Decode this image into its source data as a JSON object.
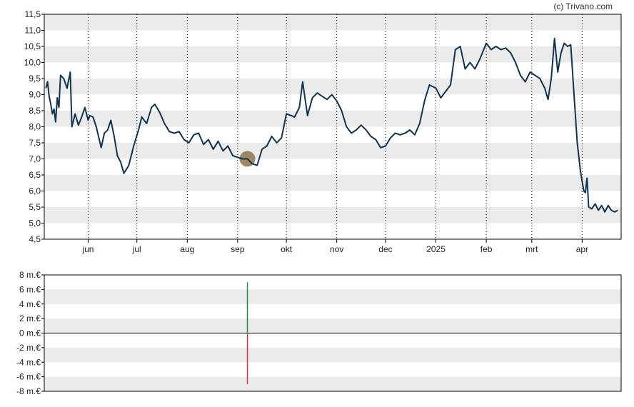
{
  "credit": "(c) Trivano.com",
  "colors": {
    "line": "#0f3550",
    "band": "#ebebeb",
    "grid": "#000000",
    "marker": "#8c7448",
    "bar_positive": "#1e8c3c",
    "bar_negative": "#e0303a"
  },
  "chart_data": [
    {
      "type": "line",
      "title": "",
      "xlabel": "",
      "ylabel": "",
      "ylim": [
        4.5,
        11.5
      ],
      "yticks": [
        "4,5",
        "5,0",
        "5,5",
        "6,0",
        "6,5",
        "7,0",
        "7,5",
        "8,0",
        "8,5",
        "9,0",
        "9,5",
        "10,0",
        "10,5",
        "11,0",
        "11,5"
      ],
      "xticks": [
        "jun",
        "jul",
        "aug",
        "sep",
        "okt",
        "nov",
        "dec",
        "2025",
        "feb",
        "mrt",
        "apr"
      ],
      "grid": "vertical dotted at month starts, alternating horizontal bands",
      "highlight_point": {
        "x": "2024-09-07",
        "y": 7.0
      },
      "series": [
        {
          "points": [
            [
              "2024-05-06",
              9.2
            ],
            [
              "2024-05-07",
              9.4
            ],
            [
              "2024-05-08",
              8.95
            ],
            [
              "2024-05-09",
              8.7
            ],
            [
              "2024-05-10",
              8.4
            ],
            [
              "2024-05-11",
              8.55
            ],
            [
              "2024-05-12",
              8.15
            ],
            [
              "2024-05-13",
              8.9
            ],
            [
              "2024-05-14",
              8.6
            ],
            [
              "2024-05-15",
              9.6
            ],
            [
              "2024-05-17",
              9.5
            ],
            [
              "2024-05-19",
              9.2
            ],
            [
              "2024-05-21",
              9.7
            ],
            [
              "2024-05-22",
              8.0
            ],
            [
              "2024-05-24",
              8.4
            ],
            [
              "2024-05-26",
              8.05
            ],
            [
              "2024-05-28",
              8.3
            ],
            [
              "2024-05-30",
              8.6
            ],
            [
              "2024-06-01",
              8.2
            ],
            [
              "2024-06-02",
              8.35
            ],
            [
              "2024-06-04",
              8.3
            ],
            [
              "2024-06-06",
              8.0
            ],
            [
              "2024-06-09",
              7.35
            ],
            [
              "2024-06-11",
              7.8
            ],
            [
              "2024-06-13",
              7.9
            ],
            [
              "2024-06-15",
              8.2
            ],
            [
              "2024-06-17",
              7.7
            ],
            [
              "2024-06-19",
              7.1
            ],
            [
              "2024-06-21",
              6.9
            ],
            [
              "2024-06-23",
              6.55
            ],
            [
              "2024-06-26",
              6.8
            ],
            [
              "2024-06-29",
              7.4
            ],
            [
              "2024-07-02",
              7.9
            ],
            [
              "2024-07-04",
              8.3
            ],
            [
              "2024-07-07",
              8.1
            ],
            [
              "2024-07-10",
              8.6
            ],
            [
              "2024-07-12",
              8.7
            ],
            [
              "2024-07-15",
              8.45
            ],
            [
              "2024-07-18",
              8.1
            ],
            [
              "2024-07-21",
              7.85
            ],
            [
              "2024-07-24",
              7.8
            ],
            [
              "2024-07-27",
              7.85
            ],
            [
              "2024-07-30",
              7.6
            ],
            [
              "2024-08-02",
              7.5
            ],
            [
              "2024-08-05",
              7.75
            ],
            [
              "2024-08-08",
              7.8
            ],
            [
              "2024-08-11",
              7.45
            ],
            [
              "2024-08-14",
              7.6
            ],
            [
              "2024-08-17",
              7.3
            ],
            [
              "2024-08-20",
              7.55
            ],
            [
              "2024-08-23",
              7.25
            ],
            [
              "2024-08-26",
              7.4
            ],
            [
              "2024-08-29",
              7.1
            ],
            [
              "2024-09-01",
              7.05
            ],
            [
              "2024-09-04",
              7.0
            ],
            [
              "2024-09-07",
              7.0
            ],
            [
              "2024-09-10",
              6.85
            ],
            [
              "2024-09-13",
              6.8
            ],
            [
              "2024-09-16",
              7.3
            ],
            [
              "2024-09-19",
              7.4
            ],
            [
              "2024-09-22",
              7.7
            ],
            [
              "2024-09-25",
              7.5
            ],
            [
              "2024-09-28",
              7.65
            ],
            [
              "2024-10-01",
              8.4
            ],
            [
              "2024-10-04",
              8.35
            ],
            [
              "2024-10-06",
              8.3
            ],
            [
              "2024-10-09",
              8.6
            ],
            [
              "2024-10-11",
              9.4
            ],
            [
              "2024-10-14",
              8.35
            ],
            [
              "2024-10-17",
              8.9
            ],
            [
              "2024-10-20",
              9.05
            ],
            [
              "2024-10-23",
              8.95
            ],
            [
              "2024-10-26",
              8.85
            ],
            [
              "2024-10-29",
              9.0
            ],
            [
              "2024-11-01",
              8.8
            ],
            [
              "2024-11-04",
              8.5
            ],
            [
              "2024-11-07",
              8.0
            ],
            [
              "2024-11-10",
              7.8
            ],
            [
              "2024-11-13",
              7.9
            ],
            [
              "2024-11-16",
              8.05
            ],
            [
              "2024-11-19",
              7.9
            ],
            [
              "2024-11-22",
              7.7
            ],
            [
              "2024-11-25",
              7.6
            ],
            [
              "2024-11-28",
              7.35
            ],
            [
              "2024-12-01",
              7.4
            ],
            [
              "2024-12-04",
              7.65
            ],
            [
              "2024-12-07",
              7.8
            ],
            [
              "2024-12-10",
              7.75
            ],
            [
              "2024-12-13",
              7.8
            ],
            [
              "2024-12-16",
              7.9
            ],
            [
              "2024-12-19",
              7.75
            ],
            [
              "2024-12-22",
              8.1
            ],
            [
              "2024-12-25",
              8.8
            ],
            [
              "2024-12-28",
              9.3
            ],
            [
              "2025-01-01",
              9.2
            ],
            [
              "2025-01-04",
              8.9
            ],
            [
              "2025-01-07",
              9.1
            ],
            [
              "2025-01-10",
              9.3
            ],
            [
              "2025-01-13",
              10.4
            ],
            [
              "2025-01-16",
              10.5
            ],
            [
              "2025-01-19",
              9.8
            ],
            [
              "2025-01-22",
              10.0
            ],
            [
              "2025-01-25",
              9.8
            ],
            [
              "2025-01-28",
              10.1
            ],
            [
              "2025-02-01",
              10.6
            ],
            [
              "2025-02-04",
              10.4
            ],
            [
              "2025-02-07",
              10.5
            ],
            [
              "2025-02-10",
              10.4
            ],
            [
              "2025-02-13",
              10.45
            ],
            [
              "2025-02-16",
              10.3
            ],
            [
              "2025-02-19",
              10.0
            ],
            [
              "2025-02-22",
              9.6
            ],
            [
              "2025-02-25",
              9.4
            ],
            [
              "2025-02-28",
              9.7
            ],
            [
              "2025-03-03",
              9.6
            ],
            [
              "2025-03-06",
              9.5
            ],
            [
              "2025-03-09",
              9.2
            ],
            [
              "2025-03-11",
              8.85
            ],
            [
              "2025-03-13",
              9.5
            ],
            [
              "2025-03-15",
              10.75
            ],
            [
              "2025-03-17",
              9.7
            ],
            [
              "2025-03-19",
              10.3
            ],
            [
              "2025-03-21",
              10.6
            ],
            [
              "2025-03-23",
              10.5
            ],
            [
              "2025-03-25",
              10.55
            ],
            [
              "2025-03-27",
              9.0
            ],
            [
              "2025-03-29",
              7.5
            ],
            [
              "2025-03-31",
              6.6
            ],
            [
              "2025-04-02",
              6.0
            ],
            [
              "2025-04-03",
              5.95
            ],
            [
              "2025-04-04",
              6.4
            ],
            [
              "2025-04-05",
              5.5
            ],
            [
              "2025-04-07",
              5.45
            ],
            [
              "2025-04-09",
              5.6
            ],
            [
              "2025-04-11",
              5.4
            ],
            [
              "2025-04-13",
              5.55
            ],
            [
              "2025-04-15",
              5.35
            ],
            [
              "2025-04-17",
              5.55
            ],
            [
              "2025-04-19",
              5.4
            ],
            [
              "2025-04-21",
              5.35
            ],
            [
              "2025-04-23",
              5.4
            ]
          ]
        }
      ]
    },
    {
      "type": "bar",
      "title": "",
      "ylabel": "",
      "ylim": [
        -8,
        8
      ],
      "yticks": [
        "-8 m.€",
        "-6 m.€",
        "-4 m.€",
        "-2 m.€",
        "0 m.€",
        "2 m.€",
        "4 m.€",
        "6 m.€",
        "8 m.€"
      ],
      "bars": [
        {
          "x": "2024-09-07",
          "value": 7.0
        },
        {
          "x": "2024-09-07",
          "value": -7.0
        }
      ]
    }
  ]
}
